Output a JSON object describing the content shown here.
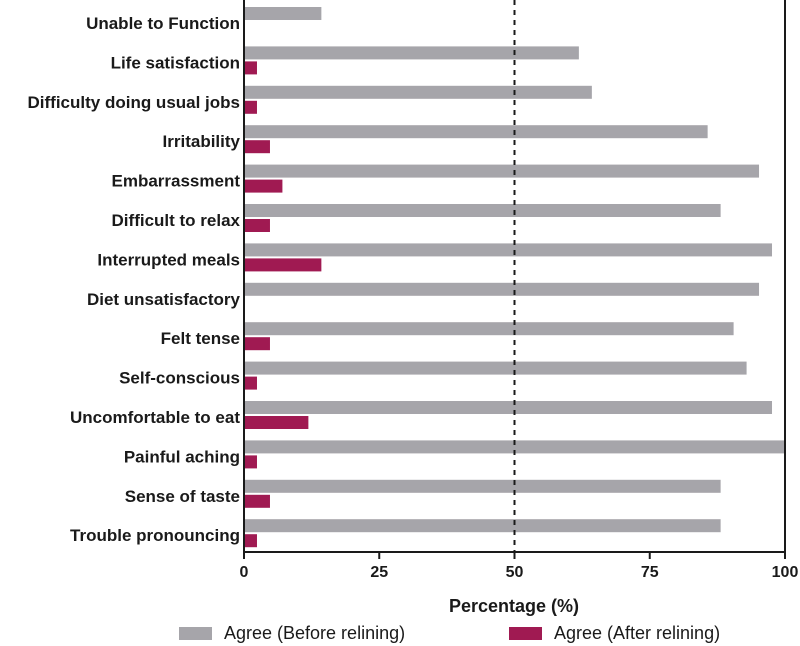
{
  "chart_data": {
    "type": "bar",
    "orientation": "horizontal",
    "categories": [
      "Unable to Function",
      "Life satisfaction",
      "Difficulty doing usual jobs",
      "Irritability",
      "Embarrassment",
      "Difficult to relax",
      "Interrupted meals",
      "Diet unsatisfactory",
      "Felt tense",
      "Self-conscious",
      "Uncomfortable to eat",
      "Painful aching",
      "Sense of taste",
      "Trouble pronouncing"
    ],
    "series": [
      {
        "name": "Agree (Before relining)",
        "color": "#a6a5aa",
        "values": [
          14.3,
          61.9,
          64.3,
          85.7,
          95.2,
          88.1,
          97.6,
          95.2,
          90.5,
          92.9,
          97.6,
          100,
          88.1,
          88.1
        ]
      },
      {
        "name": "Agree (After relining)",
        "color": "#a01a52",
        "values": [
          0,
          2.4,
          2.4,
          4.8,
          7.1,
          4.8,
          14.3,
          0,
          4.8,
          2.4,
          11.9,
          2.4,
          4.8,
          2.4
        ]
      }
    ],
    "xlabel": "Percentage (%)",
    "xlim": [
      0,
      100
    ],
    "xticks": [
      "0",
      "25",
      "50",
      "75",
      "100"
    ],
    "reference_line": {
      "x": 50,
      "style": "dashed"
    },
    "legend_position": "bottom",
    "grid": false
  }
}
